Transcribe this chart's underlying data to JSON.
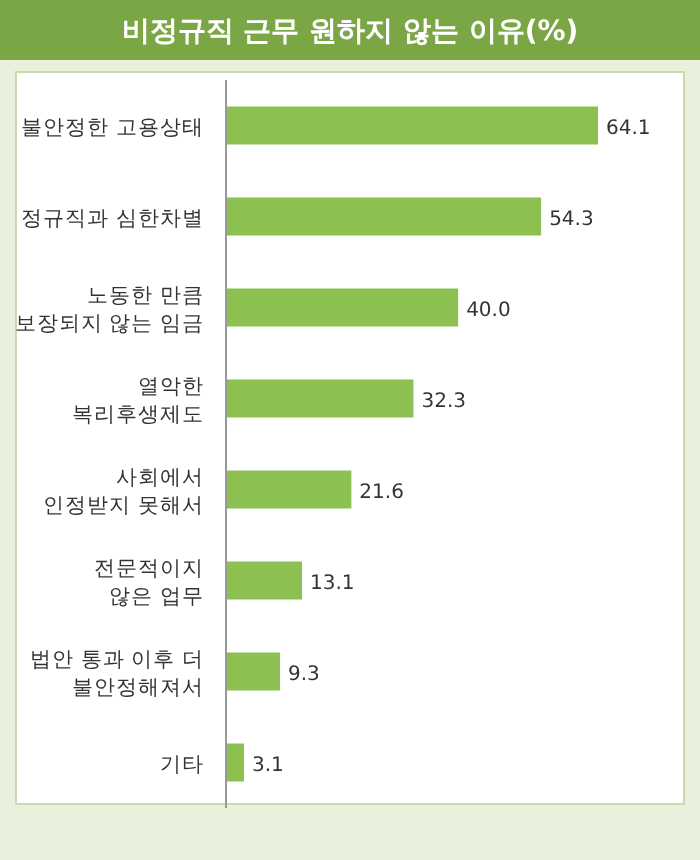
{
  "chart_data": {
    "type": "bar",
    "orientation": "horizontal",
    "title": "비정규직 근무 원하지 않는 이유(%)",
    "categories": [
      "불안정한 고용상태",
      "정규직과 심한차별",
      "노동한 만큼\n보장되지 않는 임금",
      "열악한\n복리후생제도",
      "사회에서\n인정받지 못해서",
      "전문적이지\n않은 업무",
      "법안 통과 이후 더\n불안정해져서",
      "기타"
    ],
    "values": [
      64.1,
      54.3,
      40.0,
      32.3,
      21.6,
      13.1,
      9.3,
      3.1
    ],
    "value_labels": [
      "64.1",
      "54.3",
      "40.0",
      "32.3",
      "21.6",
      "13.1",
      "9.3",
      "3.1"
    ],
    "color": "#8cc152"
  }
}
